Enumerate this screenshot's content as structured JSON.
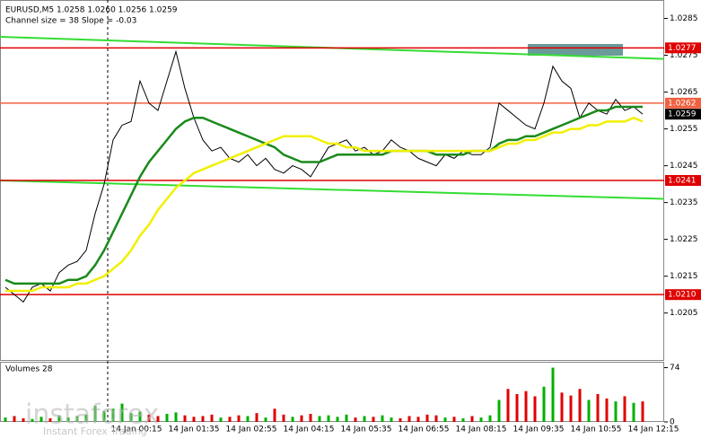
{
  "chart_data": {
    "type": "price",
    "header": "EURUSD,M5  1.0258 1.0260 1.0256 1.0259",
    "subheader": "Channel size = 38 Slope = -0.03",
    "volume_title": "Volumes 28",
    "watermark": "instaforex",
    "watermark_sub": "Instant Forex Trading",
    "ylim": [
      1.0192,
      1.029
    ],
    "yticks": [
      1.0285,
      1.0275,
      1.0265,
      1.0255,
      1.0245,
      1.0235,
      1.0225,
      1.0215,
      1.0205
    ],
    "vlim": [
      0,
      82
    ],
    "vticks": [
      0,
      74
    ],
    "levels": [
      {
        "value": 1.0277,
        "label": "1.0277",
        "color": "#e00000"
      },
      {
        "value": 1.0262,
        "label": "1.0262",
        "color": "#f06040"
      },
      {
        "value": 1.0241,
        "label": "1.0241",
        "color": "#e00000"
      },
      {
        "value": 1.021,
        "label": "1.0210",
        "color": "#e00000"
      }
    ],
    "current": 1.0259,
    "channel_upper": [
      1.028,
      1.0274
    ],
    "channel_lower": [
      1.0241,
      1.0236
    ],
    "channel_color": "#33dd33",
    "time_labels": [
      "14 Jan 00:15",
      "14 Jan 01:35",
      "14 Jan 02:55",
      "14 Jan 04:15",
      "14 Jan 05:35",
      "14 Jan 06:55",
      "14 Jan 08:15",
      "14 Jan 09:35",
      "14 Jan 10:55",
      "14 Jan 12:15"
    ],
    "series": [
      {
        "name": "Close",
        "color": "#000000",
        "values": [
          1.0212,
          1.021,
          1.0208,
          1.0212,
          1.0213,
          1.0211,
          1.0216,
          1.0218,
          1.0219,
          1.0222,
          1.0232,
          1.024,
          1.0252,
          1.0256,
          1.0257,
          1.0268,
          1.0262,
          1.026,
          1.0268,
          1.0276,
          1.0266,
          1.0258,
          1.0252,
          1.0249,
          1.025,
          1.0247,
          1.0246,
          1.0248,
          1.0245,
          1.0247,
          1.0244,
          1.0243,
          1.0245,
          1.0244,
          1.0242,
          1.0246,
          1.025,
          1.0251,
          1.0252,
          1.0249,
          1.025,
          1.0248,
          1.0249,
          1.0252,
          1.025,
          1.0249,
          1.0247,
          1.0246,
          1.0245,
          1.0248,
          1.0247,
          1.0249,
          1.0248,
          1.0248,
          1.025,
          1.0262,
          1.026,
          1.0258,
          1.0256,
          1.0255,
          1.0262,
          1.0272,
          1.0268,
          1.0266,
          1.0258,
          1.0262,
          1.026,
          1.0259,
          1.0263,
          1.026,
          1.0261,
          1.0259
        ]
      },
      {
        "name": "MA fast",
        "color": "#1a8a1a",
        "values": [
          1.0214,
          1.0213,
          1.0213,
          1.0213,
          1.0213,
          1.0213,
          1.0213,
          1.0214,
          1.0214,
          1.0215,
          1.0218,
          1.0222,
          1.0227,
          1.0232,
          1.0237,
          1.0242,
          1.0246,
          1.0249,
          1.0252,
          1.0255,
          1.0257,
          1.0258,
          1.0258,
          1.0257,
          1.0256,
          1.0255,
          1.0254,
          1.0253,
          1.0252,
          1.0251,
          1.025,
          1.0248,
          1.0247,
          1.0246,
          1.0246,
          1.0246,
          1.0247,
          1.0248,
          1.0248,
          1.0248,
          1.0248,
          1.0248,
          1.0248,
          1.0249,
          1.0249,
          1.0249,
          1.0249,
          1.0249,
          1.0248,
          1.0248,
          1.0248,
          1.0248,
          1.0249,
          1.0249,
          1.0249,
          1.0251,
          1.0252,
          1.0252,
          1.0253,
          1.0253,
          1.0254,
          1.0255,
          1.0256,
          1.0257,
          1.0258,
          1.0259,
          1.026,
          1.026,
          1.0261,
          1.0261,
          1.0261,
          1.0261
        ]
      },
      {
        "name": "MA slow",
        "color": "#f0f000",
        "values": [
          1.0211,
          1.0211,
          1.0211,
          1.0211,
          1.0212,
          1.0212,
          1.0212,
          1.0212,
          1.0213,
          1.0213,
          1.0214,
          1.0215,
          1.0217,
          1.0219,
          1.0222,
          1.0226,
          1.0229,
          1.0233,
          1.0236,
          1.0239,
          1.0241,
          1.0243,
          1.0244,
          1.0245,
          1.0246,
          1.0247,
          1.0248,
          1.0249,
          1.025,
          1.0251,
          1.0252,
          1.0253,
          1.0253,
          1.0253,
          1.0253,
          1.0252,
          1.0251,
          1.0251,
          1.025,
          1.025,
          1.0249,
          1.0249,
          1.0249,
          1.0249,
          1.0249,
          1.0249,
          1.0249,
          1.0249,
          1.0249,
          1.0249,
          1.0249,
          1.0249,
          1.0249,
          1.0249,
          1.0249,
          1.025,
          1.0251,
          1.0251,
          1.0252,
          1.0252,
          1.0253,
          1.0254,
          1.0254,
          1.0255,
          1.0255,
          1.0256,
          1.0256,
          1.0257,
          1.0257,
          1.0257,
          1.0258,
          1.0257
        ]
      }
    ],
    "volumes": [
      6,
      8,
      5,
      4,
      7,
      5,
      9,
      6,
      8,
      10,
      22,
      15,
      18,
      25,
      12,
      14,
      10,
      8,
      11,
      13,
      9,
      7,
      8,
      10,
      6,
      7,
      9,
      8,
      12,
      6,
      18,
      10,
      7,
      9,
      11,
      8,
      9,
      7,
      10,
      6,
      8,
      7,
      9,
      6,
      5,
      8,
      7,
      10,
      9,
      6,
      7,
      5,
      8,
      6,
      9,
      30,
      45,
      38,
      42,
      35,
      48,
      74,
      40,
      36,
      45,
      30,
      38,
      32,
      28,
      35,
      26,
      28
    ]
  }
}
